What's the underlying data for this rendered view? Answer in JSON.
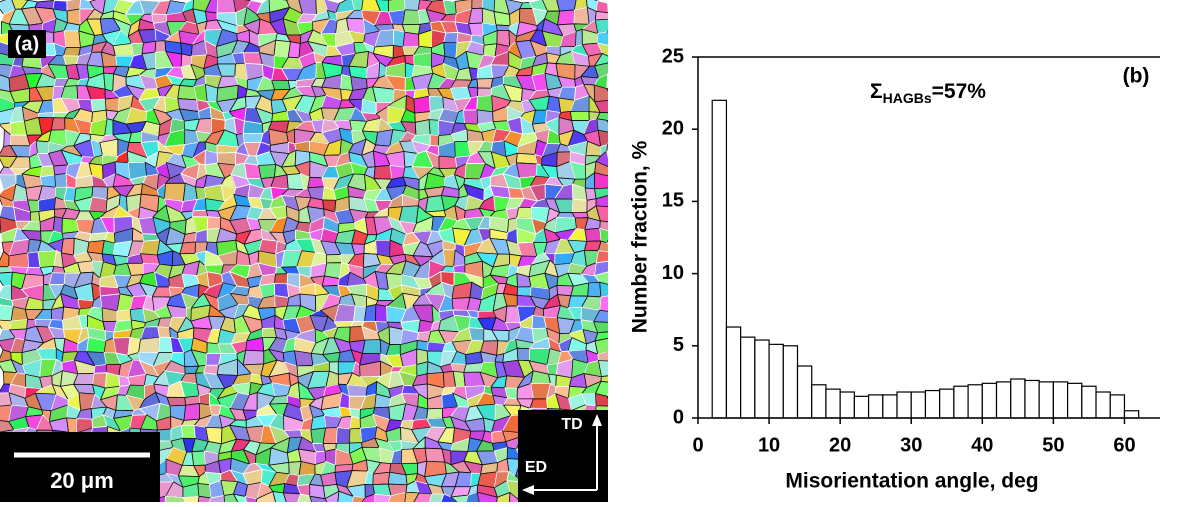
{
  "panel_a": {
    "label": "(a)",
    "scale_bar": "20 μm",
    "directions": [
      "TD",
      "ED"
    ]
  },
  "chart_data": {
    "type": "histogram",
    "panel_label": "(b)",
    "annotation": {
      "symbol": "Σ",
      "subscript": "HAGBs",
      "text": "=57%"
    },
    "x_label": "Misorientation angle, deg",
    "y_label": "Number fraction, %",
    "bins": [
      2,
      4,
      6,
      8,
      10,
      12,
      14,
      16,
      18,
      20,
      22,
      24,
      26,
      28,
      30,
      32,
      34,
      36,
      38,
      40,
      42,
      44,
      46,
      48,
      50,
      52,
      54,
      56,
      58,
      60,
      62
    ],
    "values": [
      22,
      6.3,
      5.6,
      5.4,
      5.1,
      5.0,
      3.6,
      2.3,
      2.0,
      1.8,
      1.5,
      1.6,
      1.6,
      1.8,
      1.8,
      1.9,
      2.0,
      2.2,
      2.3,
      2.4,
      2.5,
      2.7,
      2.6,
      2.5,
      2.5,
      2.4,
      2.2,
      1.8,
      1.6,
      0.5
    ],
    "color": "#ffffff",
    "xlim": [
      0,
      65
    ],
    "xticks": [
      0,
      10,
      20,
      30,
      40,
      50,
      60
    ],
    "ylim": [
      0,
      25
    ],
    "yticks": [
      0,
      5,
      10,
      15,
      20,
      25
    ]
  }
}
